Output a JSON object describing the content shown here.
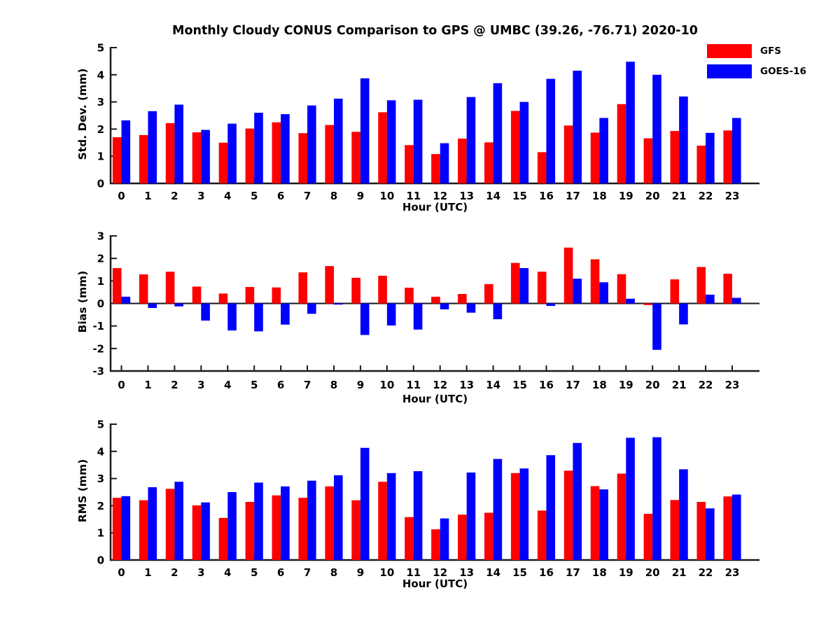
{
  "title": "Monthly Cloudy CONUS Comparison to GPS @ UMBC (39.26, -76.71) 2020-10",
  "legend": {
    "items": [
      {
        "label": "GFS",
        "color": "#ff0000"
      },
      {
        "label": "GOES-16",
        "color": "#0000ff"
      }
    ]
  },
  "axis_color": "#1a1a1a",
  "chart_data": [
    {
      "type": "bar",
      "name": "std_dev",
      "ylabel": "Std. Dev. (mm)",
      "xlabel": "Hour (UTC)",
      "ylim": [
        0,
        5
      ],
      "yticks": [
        0,
        1,
        2,
        3,
        4,
        5
      ],
      "grid": false,
      "legend_position": "top-right",
      "categories": [
        "0",
        "1",
        "2",
        "3",
        "4",
        "5",
        "6",
        "7",
        "8",
        "9",
        "10",
        "11",
        "12",
        "13",
        "14",
        "15",
        "16",
        "17",
        "18",
        "19",
        "20",
        "21",
        "22",
        "23"
      ],
      "series": [
        {
          "name": "GFS",
          "color": "#ff0000",
          "values": [
            1.7,
            1.78,
            2.22,
            1.88,
            1.5,
            2.02,
            2.25,
            1.85,
            2.15,
            1.9,
            2.62,
            1.41,
            1.08,
            1.65,
            1.51,
            2.67,
            1.15,
            2.13,
            1.87,
            2.92,
            1.66,
            1.93,
            1.39,
            1.95
          ]
        },
        {
          "name": "GOES-16",
          "color": "#0000ff",
          "values": [
            2.32,
            2.66,
            2.9,
            1.97,
            2.2,
            2.6,
            2.55,
            2.87,
            3.12,
            3.87,
            3.06,
            3.08,
            1.48,
            3.18,
            3.69,
            3.0,
            3.85,
            4.15,
            2.41,
            4.48,
            4.0,
            3.2,
            1.86,
            2.41
          ]
        }
      ]
    },
    {
      "type": "bar",
      "name": "bias",
      "ylabel": "Bias (mm)",
      "xlabel": "Hour (UTC)",
      "ylim": [
        -3,
        3
      ],
      "yticks": [
        -3,
        -2,
        -1,
        0,
        1,
        2,
        3
      ],
      "grid": false,
      "categories": [
        "0",
        "1",
        "2",
        "3",
        "4",
        "5",
        "6",
        "7",
        "8",
        "9",
        "10",
        "11",
        "12",
        "13",
        "14",
        "15",
        "16",
        "17",
        "18",
        "19",
        "20",
        "21",
        "22",
        "23"
      ],
      "series": [
        {
          "name": "GFS",
          "color": "#ff0000",
          "values": [
            1.57,
            1.29,
            1.41,
            0.75,
            0.44,
            0.73,
            0.71,
            1.38,
            1.66,
            1.14,
            1.23,
            0.7,
            0.3,
            0.42,
            0.86,
            1.8,
            1.41,
            2.48,
            1.96,
            1.3,
            -0.07,
            1.07,
            1.62,
            1.32
          ]
        },
        {
          "name": "GOES-16",
          "color": "#0000ff",
          "values": [
            0.3,
            -0.2,
            -0.13,
            -0.76,
            -1.2,
            -1.24,
            -0.94,
            -0.46,
            -0.05,
            -1.4,
            -0.98,
            -1.16,
            -0.26,
            -0.41,
            -0.7,
            1.57,
            -0.11,
            1.1,
            0.94,
            0.21,
            -2.06,
            -0.93,
            0.39,
            0.25
          ]
        }
      ]
    },
    {
      "type": "bar",
      "name": "rms",
      "ylabel": "RMS (mm)",
      "xlabel": "Hour (UTC)",
      "ylim": [
        0,
        5
      ],
      "yticks": [
        0,
        1,
        2,
        3,
        4,
        5
      ],
      "grid": false,
      "categories": [
        "0",
        "1",
        "2",
        "3",
        "4",
        "5",
        "6",
        "7",
        "8",
        "9",
        "10",
        "11",
        "12",
        "13",
        "14",
        "15",
        "16",
        "17",
        "18",
        "19",
        "20",
        "21",
        "22",
        "23"
      ],
      "series": [
        {
          "name": "GFS",
          "color": "#ff0000",
          "values": [
            2.29,
            2.2,
            2.62,
            2.01,
            1.55,
            2.14,
            2.38,
            2.29,
            2.71,
            2.2,
            2.88,
            1.58,
            1.13,
            1.67,
            1.74,
            3.2,
            1.82,
            3.29,
            2.72,
            3.18,
            1.7,
            2.21,
            2.14,
            2.34
          ]
        },
        {
          "name": "GOES-16",
          "color": "#0000ff",
          "values": [
            2.35,
            2.68,
            2.88,
            2.12,
            2.5,
            2.85,
            2.71,
            2.92,
            3.12,
            4.13,
            3.2,
            3.27,
            1.53,
            3.22,
            3.72,
            3.37,
            3.86,
            4.31,
            2.6,
            4.5,
            4.52,
            3.34,
            1.9,
            2.41
          ]
        }
      ]
    }
  ]
}
